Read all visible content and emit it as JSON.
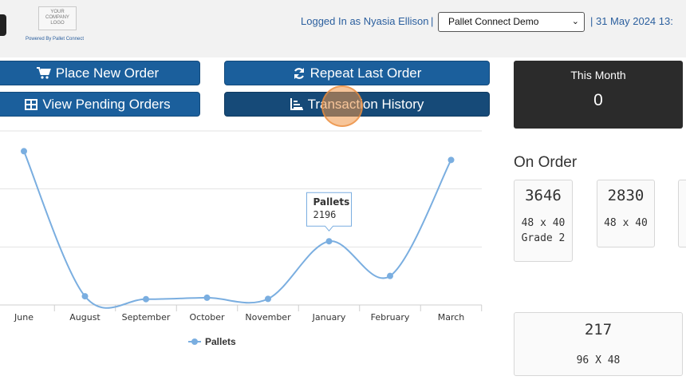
{
  "header": {
    "logo_lines": [
      "YOUR",
      "COMPANY",
      "LOGO"
    ],
    "powered_by": "Powered By Pallet Connect",
    "logged_in": "Logged In as Nyasia Ellison",
    "separator": "|",
    "account_select": "Pallet Connect Demo",
    "date": "| 31 May 2024 13:"
  },
  "actions": {
    "place_new_order": "Place New Order",
    "repeat_last_order": "Repeat Last Order",
    "view_pending_orders": "View Pending Orders",
    "transaction_history": "Transaction History"
  },
  "this_month": {
    "title": "This Month",
    "value": "0"
  },
  "on_order": {
    "title": "On Order",
    "cards": [
      {
        "count": "3646",
        "desc": "48 x 40",
        "desc2": "Grade 2"
      },
      {
        "count": "2830",
        "desc": "48 x 40",
        "desc2": ""
      }
    ]
  },
  "stock_card": {
    "count": "217",
    "desc": "96 X 48"
  },
  "colors": {
    "primary_button": "#1b5f9c",
    "active_button": "#164a78",
    "series": "#7aaee0",
    "dark_panel": "#2b2b2b"
  },
  "chart_data": {
    "type": "line",
    "categories": [
      "June",
      "August",
      "September",
      "October",
      "November",
      "January",
      "February",
      "March"
    ],
    "series": [
      {
        "name": "Pallets",
        "values": [
          5300,
          300,
          200,
          250,
          210,
          2196,
          1000,
          5000
        ]
      }
    ],
    "tooltip": {
      "series": "Pallets",
      "value": "2196",
      "category": "January"
    },
    "ylim": [
      0,
      6000
    ],
    "grid": true,
    "legend": "bottom"
  }
}
